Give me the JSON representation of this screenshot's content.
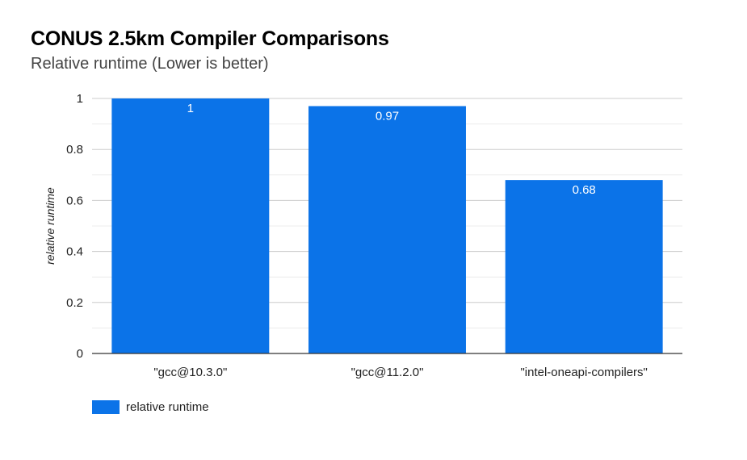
{
  "chart_data": {
    "type": "bar",
    "title": "CONUS 2.5km Compiler Comparisons",
    "subtitle": "Relative runtime (Lower is better)",
    "xlabel": "",
    "ylabel": "relative runtime",
    "categories": [
      "\"gcc@10.3.0\"",
      "\"gcc@11.2.0\"",
      "\"intel-oneapi-compilers\""
    ],
    "series": [
      {
        "name": "relative runtime",
        "values": [
          1,
          0.97,
          0.68
        ],
        "data_labels": [
          "1",
          "0.97",
          "0.68"
        ],
        "color": "#0b73e8"
      }
    ],
    "ylim": [
      0,
      1
    ],
    "yticks": [
      "0",
      "0.2",
      "0.4",
      "0.6",
      "0.8",
      "1"
    ],
    "ytick_values": [
      0,
      0.2,
      0.4,
      0.6,
      0.8,
      1
    ],
    "minor_gridline_step": 0.1,
    "grid": true,
    "legend": "bottom-left"
  }
}
